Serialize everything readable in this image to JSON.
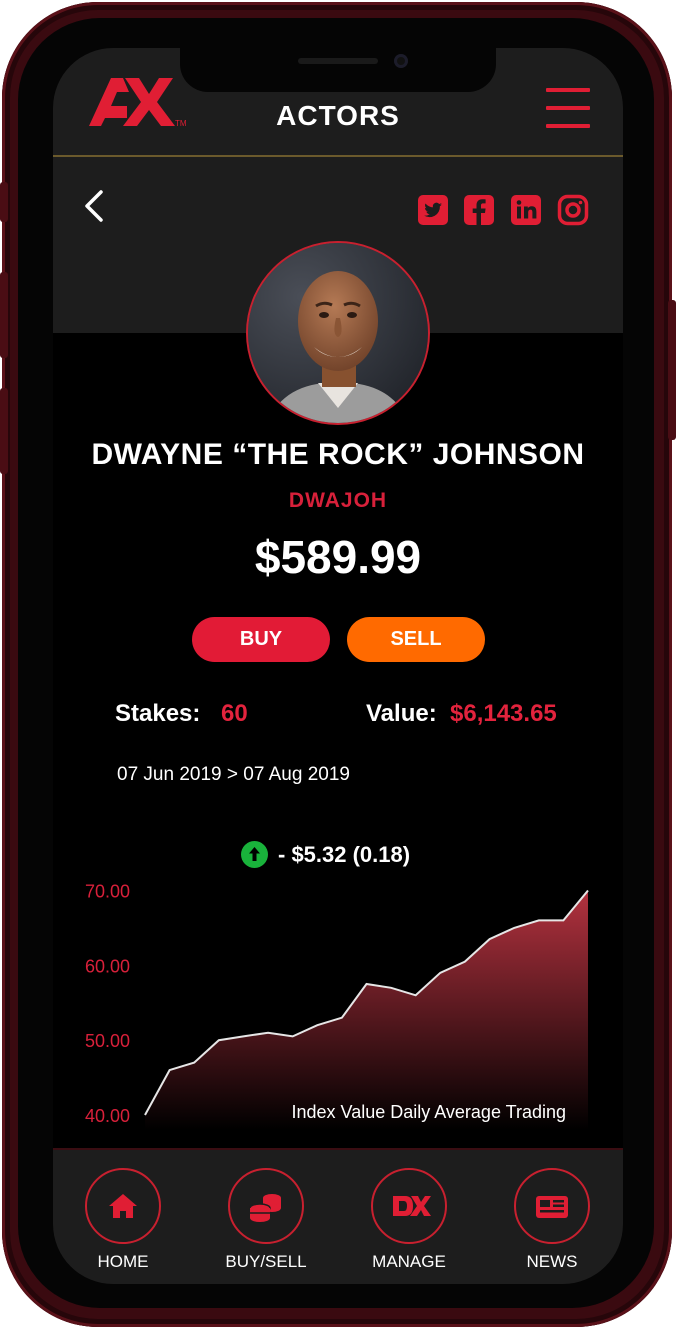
{
  "header": {
    "title": "ACTORS"
  },
  "profile": {
    "name": "DWAYNE “THE ROCK” JOHNSON",
    "ticker": "DWAJOH",
    "price": "$589.99"
  },
  "actions": {
    "buy_label": "BUY",
    "sell_label": "SELL"
  },
  "stats": {
    "stakes_label": "Stakes:",
    "stakes_value": "60",
    "value_label": "Value:",
    "value_value": "$6,143.65"
  },
  "date_range": "07 Jun 2019 > 07 Aug 2019",
  "change": {
    "text": "- $5.32 (0.18)",
    "direction": "up",
    "color": "#19b23b"
  },
  "chart_caption": "Index Value Daily Average Trading",
  "chart_data": {
    "type": "area",
    "title": "",
    "xlabel": "",
    "ylabel": "",
    "ylim": [
      38,
      73
    ],
    "yticks": [
      "70.00",
      "60.00",
      "50.00",
      "40.00"
    ],
    "y": [
      40,
      46,
      47,
      50,
      50.5,
      51,
      50.5,
      52,
      53,
      57.5,
      57,
      56,
      59,
      60.5,
      63.5,
      65,
      66,
      66,
      70
    ],
    "grid": false,
    "fill_gradient": [
      "#000000",
      "#b3323f"
    ]
  },
  "social_icons": [
    "twitter-icon",
    "facebook-icon",
    "linkedin-icon",
    "instagram-icon"
  ],
  "nav": [
    {
      "label": "HOME",
      "icon": "home-icon"
    },
    {
      "label": "BUY/SELL",
      "icon": "coins-icon"
    },
    {
      "label": "MANAGE",
      "icon": "dx-logo-icon"
    },
    {
      "label": "NEWS",
      "icon": "news-icon"
    }
  ],
  "colors": {
    "accent": "#e01e34",
    "sell": "#ff6a00",
    "header_bg": "#1d1d1d",
    "screen_bg": "#000000"
  }
}
